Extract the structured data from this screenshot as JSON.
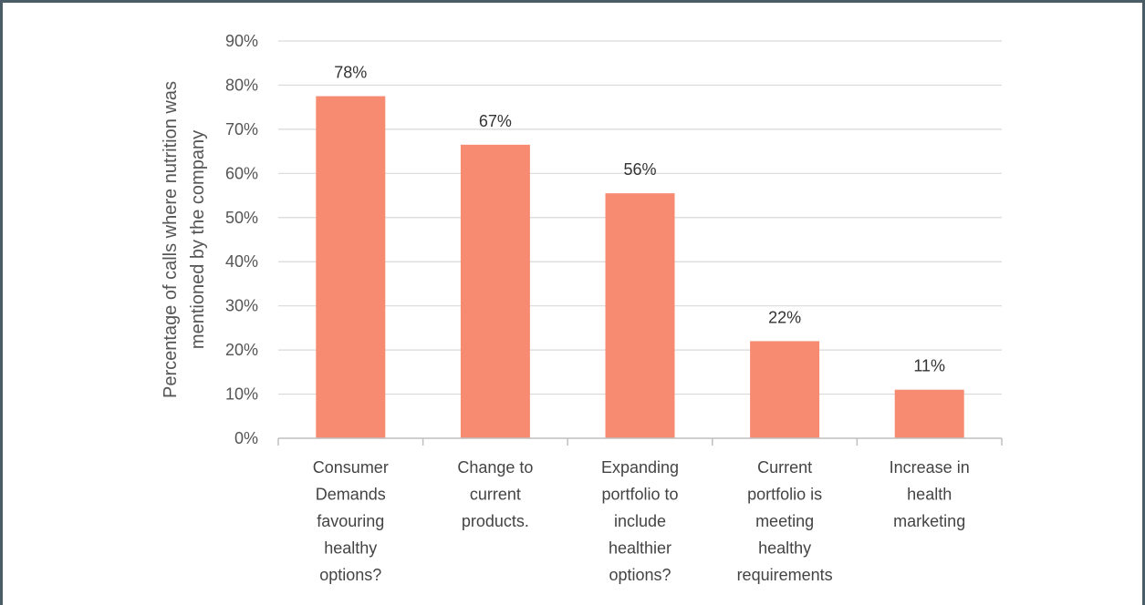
{
  "chart_data": {
    "type": "bar",
    "title": "",
    "xlabel": "",
    "ylabel": [
      "Percentage of calls where nutrition was",
      "mentioned by the company"
    ],
    "ylim": [
      0,
      90
    ],
    "ytick_labels": [
      "0%",
      "10%",
      "20%",
      "30%",
      "40%",
      "50%",
      "60%",
      "70%",
      "80%",
      "90%"
    ],
    "ytick_values": [
      0,
      10,
      20,
      30,
      40,
      50,
      60,
      70,
      80,
      90
    ],
    "grid": true,
    "legend": "none",
    "bar_color": "#F78B71",
    "categories": [
      [
        "Consumer",
        "Demands",
        "favouring",
        "healthy",
        "options?"
      ],
      [
        "Change to",
        "current",
        "products."
      ],
      [
        "Expanding",
        "portfolio to",
        "include",
        "healthier",
        "options?"
      ],
      [
        "Current",
        "portfolio is",
        "meeting",
        "healthy",
        "requirements"
      ],
      [
        "Increase in",
        "health",
        "marketing"
      ]
    ],
    "values": [
      77.5,
      66.5,
      55.5,
      22,
      11
    ],
    "data_labels": [
      "78%",
      "67%",
      "56%",
      "22%",
      "11%"
    ]
  }
}
